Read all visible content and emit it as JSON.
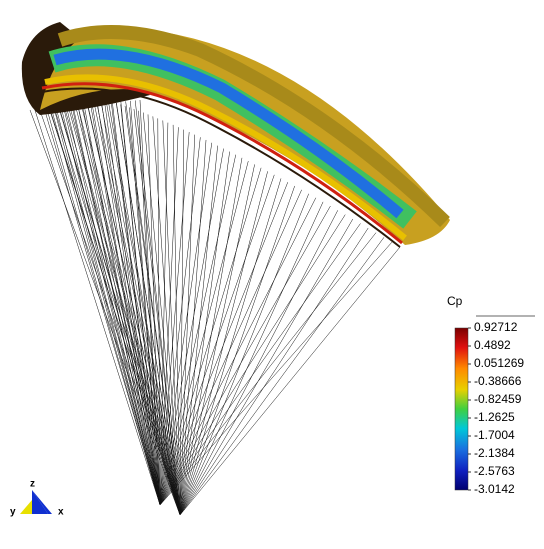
{
  "colorbar": {
    "title": "Cp",
    "ticks": [
      0.92712,
      0.4892,
      0.051269,
      -0.38666,
      -0.82459,
      -1.2625,
      -1.7004,
      -2.1384,
      -2.5763,
      -3.0142
    ]
  },
  "axes": {
    "z": "z",
    "y": "y",
    "x": "x"
  }
}
